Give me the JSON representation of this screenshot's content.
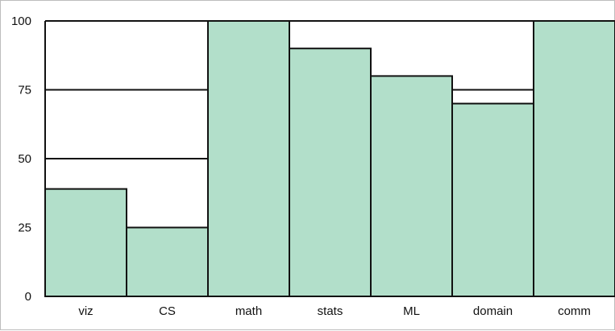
{
  "chart_data": {
    "type": "bar",
    "categories": [
      "viz",
      "CS",
      "math",
      "stats",
      "ML",
      "domain",
      "comm"
    ],
    "values": [
      39,
      25,
      100,
      90,
      80,
      70,
      100
    ],
    "ylim": [
      0,
      100
    ],
    "yticks": [
      0,
      25,
      50,
      75,
      100
    ],
    "grid": "horizontal",
    "title": "",
    "xlabel": "",
    "ylabel": ""
  },
  "colors": {
    "bar_fill": "#b2dfca",
    "bar_stroke": "#111111",
    "grid": "#111111",
    "frame": "#bdbdbd"
  }
}
